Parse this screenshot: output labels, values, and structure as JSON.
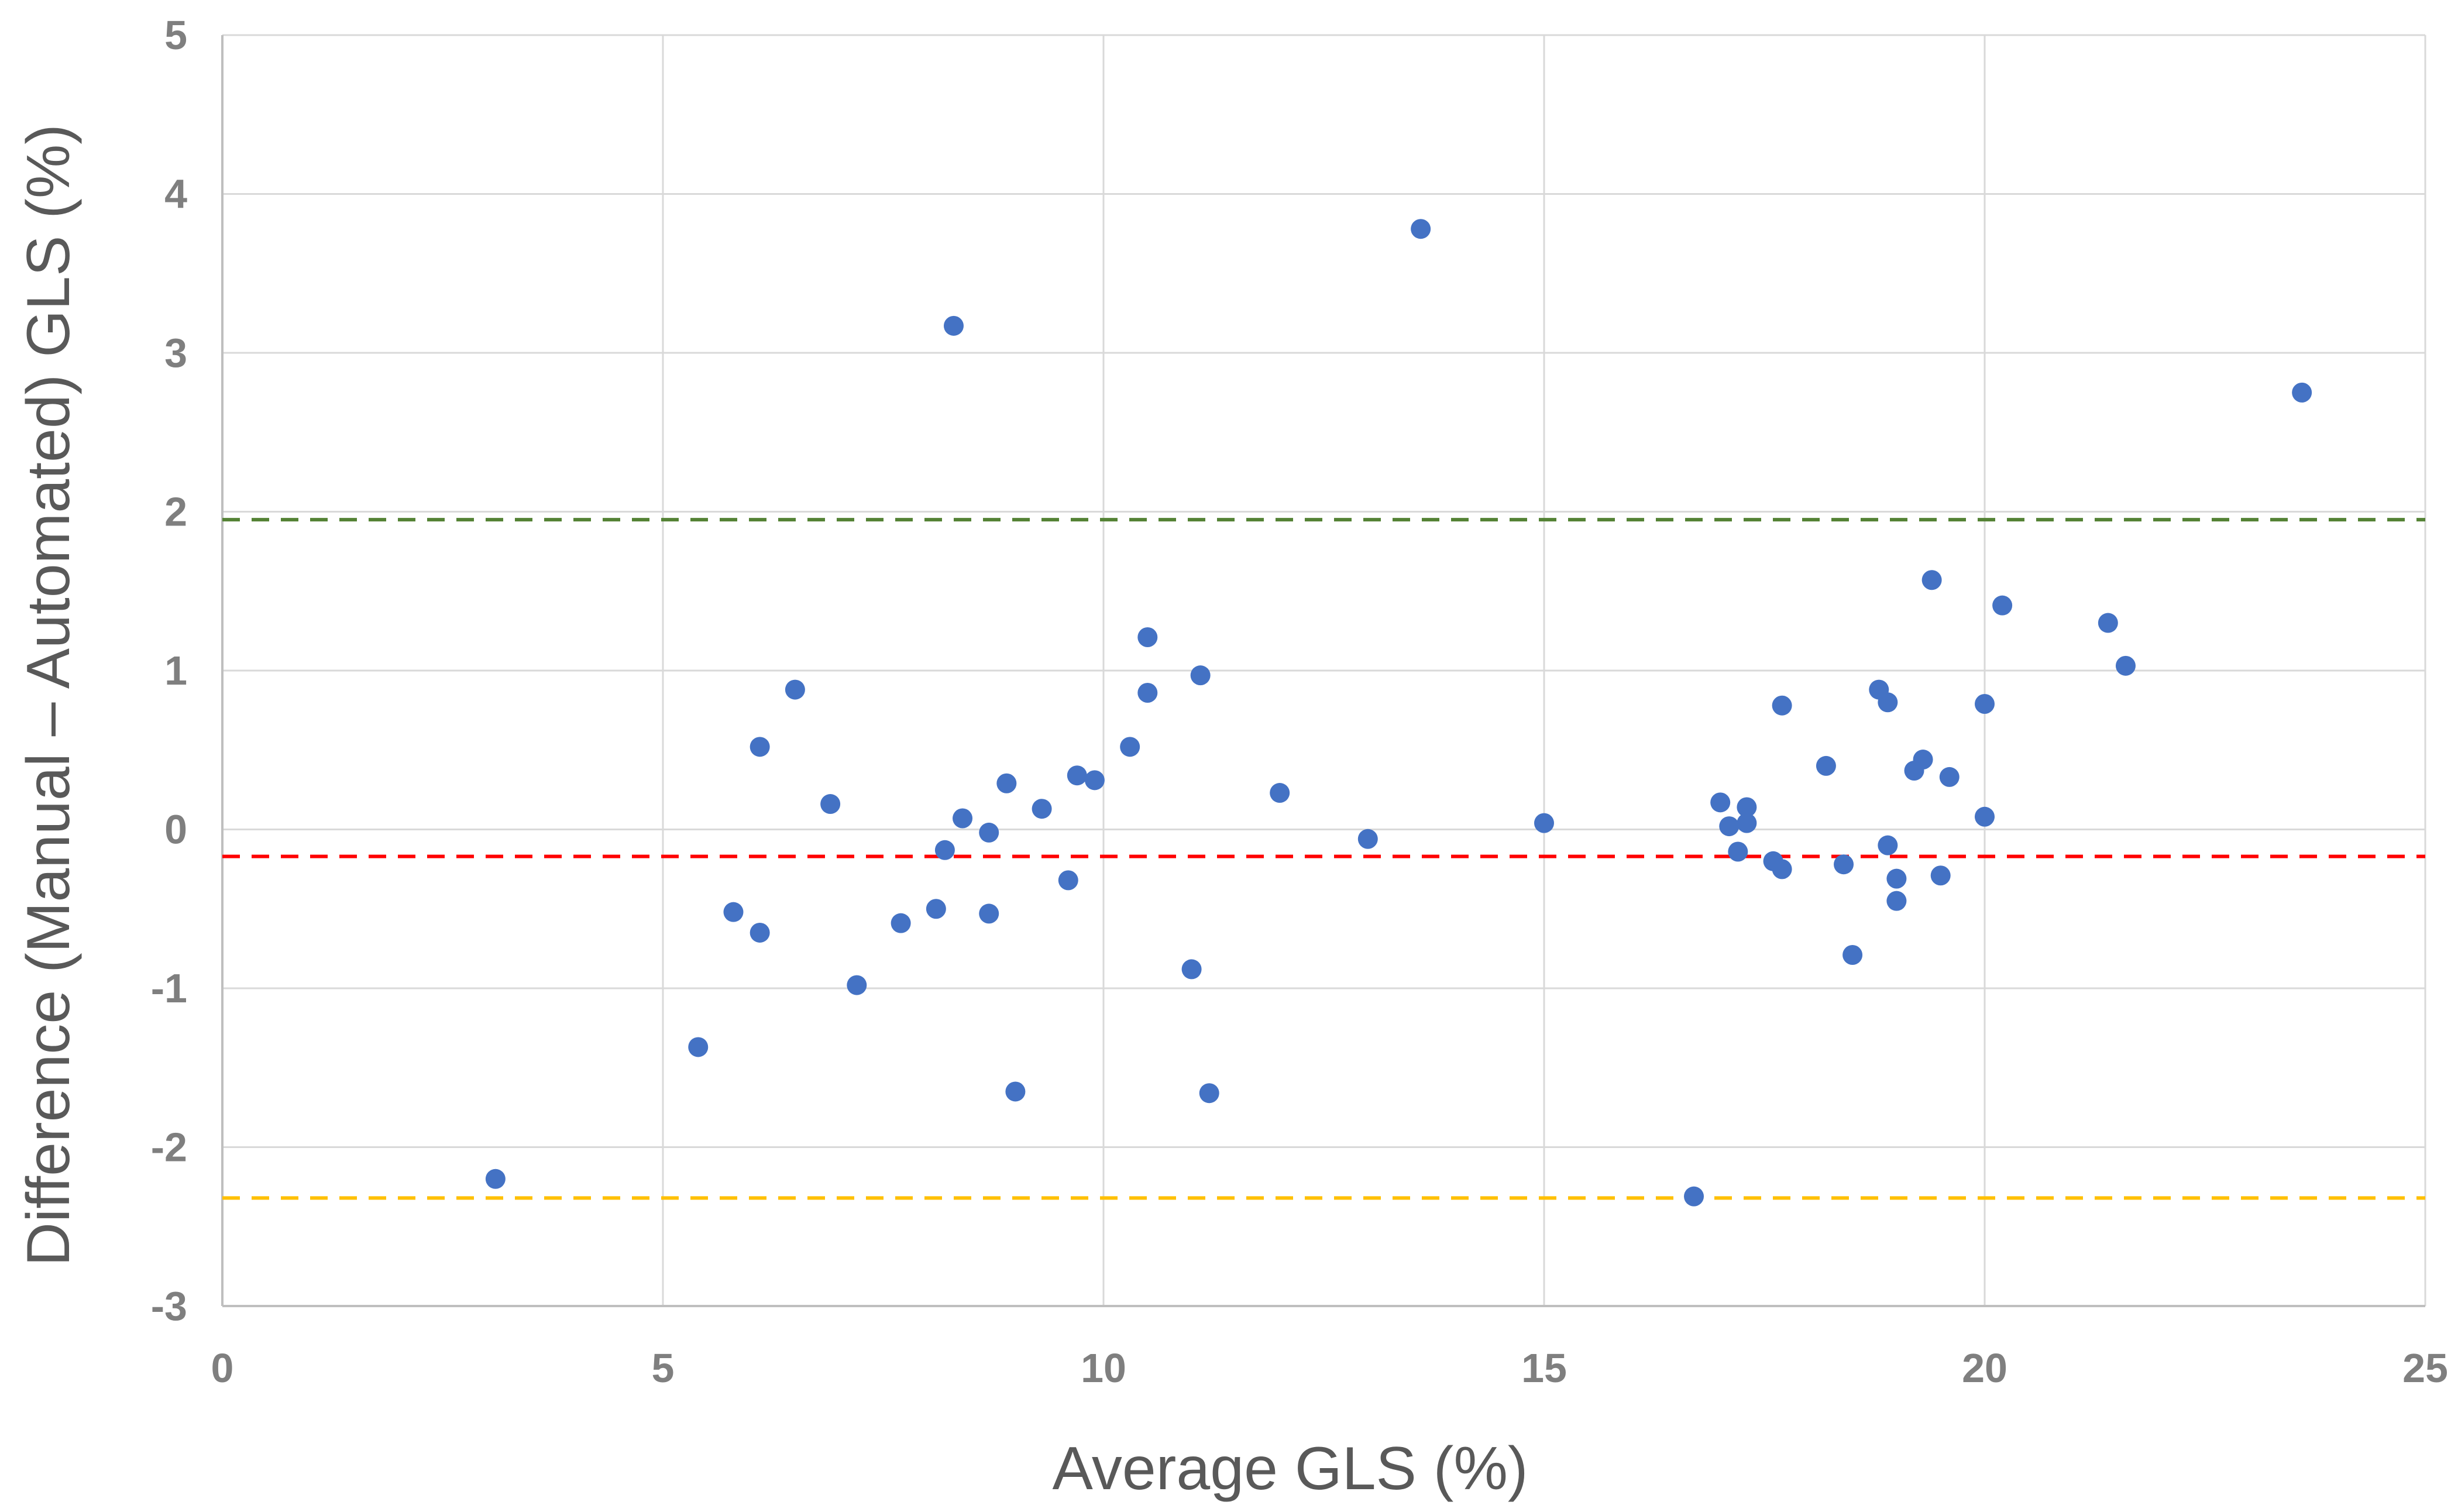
{
  "chart_data": {
    "type": "scatter",
    "title": "",
    "xlabel": "Average GLS (%)",
    "ylabel": "Difference (Manual – Automated) GLS (%)",
    "xlim": [
      0,
      25
    ],
    "ylim": [
      -3,
      5
    ],
    "xticks": [
      0,
      5,
      10,
      15,
      20,
      25
    ],
    "yticks": [
      -3,
      -2,
      -1,
      0,
      1,
      2,
      3,
      4,
      5
    ],
    "grid": true,
    "legend": "none",
    "point_color": "#4472c4",
    "reference_lines": [
      {
        "name": "upper-limit-of-agreement",
        "y": 1.95,
        "color": "#548235"
      },
      {
        "name": "mean-difference",
        "y": -0.17,
        "color": "#ff0000"
      },
      {
        "name": "lower-limit-of-agreement",
        "y": -2.32,
        "color": "#ffc000"
      }
    ],
    "series": [
      {
        "name": "GLS difference",
        "points": [
          {
            "x": 3.1,
            "y": -2.2
          },
          {
            "x": 5.4,
            "y": -1.37
          },
          {
            "x": 5.8,
            "y": -0.52
          },
          {
            "x": 6.1,
            "y": 0.52
          },
          {
            "x": 6.1,
            "y": -0.65
          },
          {
            "x": 6.5,
            "y": 0.88
          },
          {
            "x": 6.9,
            "y": 0.16
          },
          {
            "x": 7.2,
            "y": -0.98
          },
          {
            "x": 7.7,
            "y": -0.59
          },
          {
            "x": 8.1,
            "y": -0.5
          },
          {
            "x": 8.2,
            "y": -0.13
          },
          {
            "x": 8.3,
            "y": 3.17
          },
          {
            "x": 8.4,
            "y": 0.07
          },
          {
            "x": 8.7,
            "y": -0.02
          },
          {
            "x": 8.7,
            "y": -0.53
          },
          {
            "x": 8.9,
            "y": 0.29
          },
          {
            "x": 9.0,
            "y": -1.65
          },
          {
            "x": 9.3,
            "y": 0.13
          },
          {
            "x": 9.6,
            "y": -0.32
          },
          {
            "x": 9.7,
            "y": 0.34
          },
          {
            "x": 9.9,
            "y": 0.31
          },
          {
            "x": 10.3,
            "y": 0.52
          },
          {
            "x": 10.5,
            "y": 1.21
          },
          {
            "x": 10.5,
            "y": 0.86
          },
          {
            "x": 11.0,
            "y": -0.88
          },
          {
            "x": 11.1,
            "y": 0.97
          },
          {
            "x": 11.2,
            "y": -1.66
          },
          {
            "x": 12.0,
            "y": 0.23
          },
          {
            "x": 13.0,
            "y": -0.06
          },
          {
            "x": 13.6,
            "y": 3.78
          },
          {
            "x": 15.0,
            "y": 0.04
          },
          {
            "x": 16.7,
            "y": -2.31
          },
          {
            "x": 17.0,
            "y": 0.17
          },
          {
            "x": 17.1,
            "y": 0.02
          },
          {
            "x": 17.2,
            "y": -0.14
          },
          {
            "x": 17.3,
            "y": 0.14
          },
          {
            "x": 17.3,
            "y": 0.04
          },
          {
            "x": 17.6,
            "y": -0.2
          },
          {
            "x": 17.7,
            "y": 0.78
          },
          {
            "x": 17.7,
            "y": -0.25
          },
          {
            "x": 18.2,
            "y": 0.4
          },
          {
            "x": 18.4,
            "y": -0.22
          },
          {
            "x": 18.5,
            "y": -0.79
          },
          {
            "x": 18.8,
            "y": 0.88
          },
          {
            "x": 18.9,
            "y": 0.8
          },
          {
            "x": 18.9,
            "y": -0.1
          },
          {
            "x": 19.0,
            "y": -0.31
          },
          {
            "x": 19.0,
            "y": -0.45
          },
          {
            "x": 19.2,
            "y": 0.37
          },
          {
            "x": 19.3,
            "y": 0.44
          },
          {
            "x": 19.4,
            "y": 1.57
          },
          {
            "x": 19.5,
            "y": -0.29
          },
          {
            "x": 19.6,
            "y": 0.33
          },
          {
            "x": 20.0,
            "y": 0.79
          },
          {
            "x": 20.0,
            "y": 0.08
          },
          {
            "x": 20.2,
            "y": 1.41
          },
          {
            "x": 21.4,
            "y": 1.3
          },
          {
            "x": 21.6,
            "y": 1.03
          },
          {
            "x": 23.6,
            "y": 2.75
          }
        ]
      }
    ]
  }
}
